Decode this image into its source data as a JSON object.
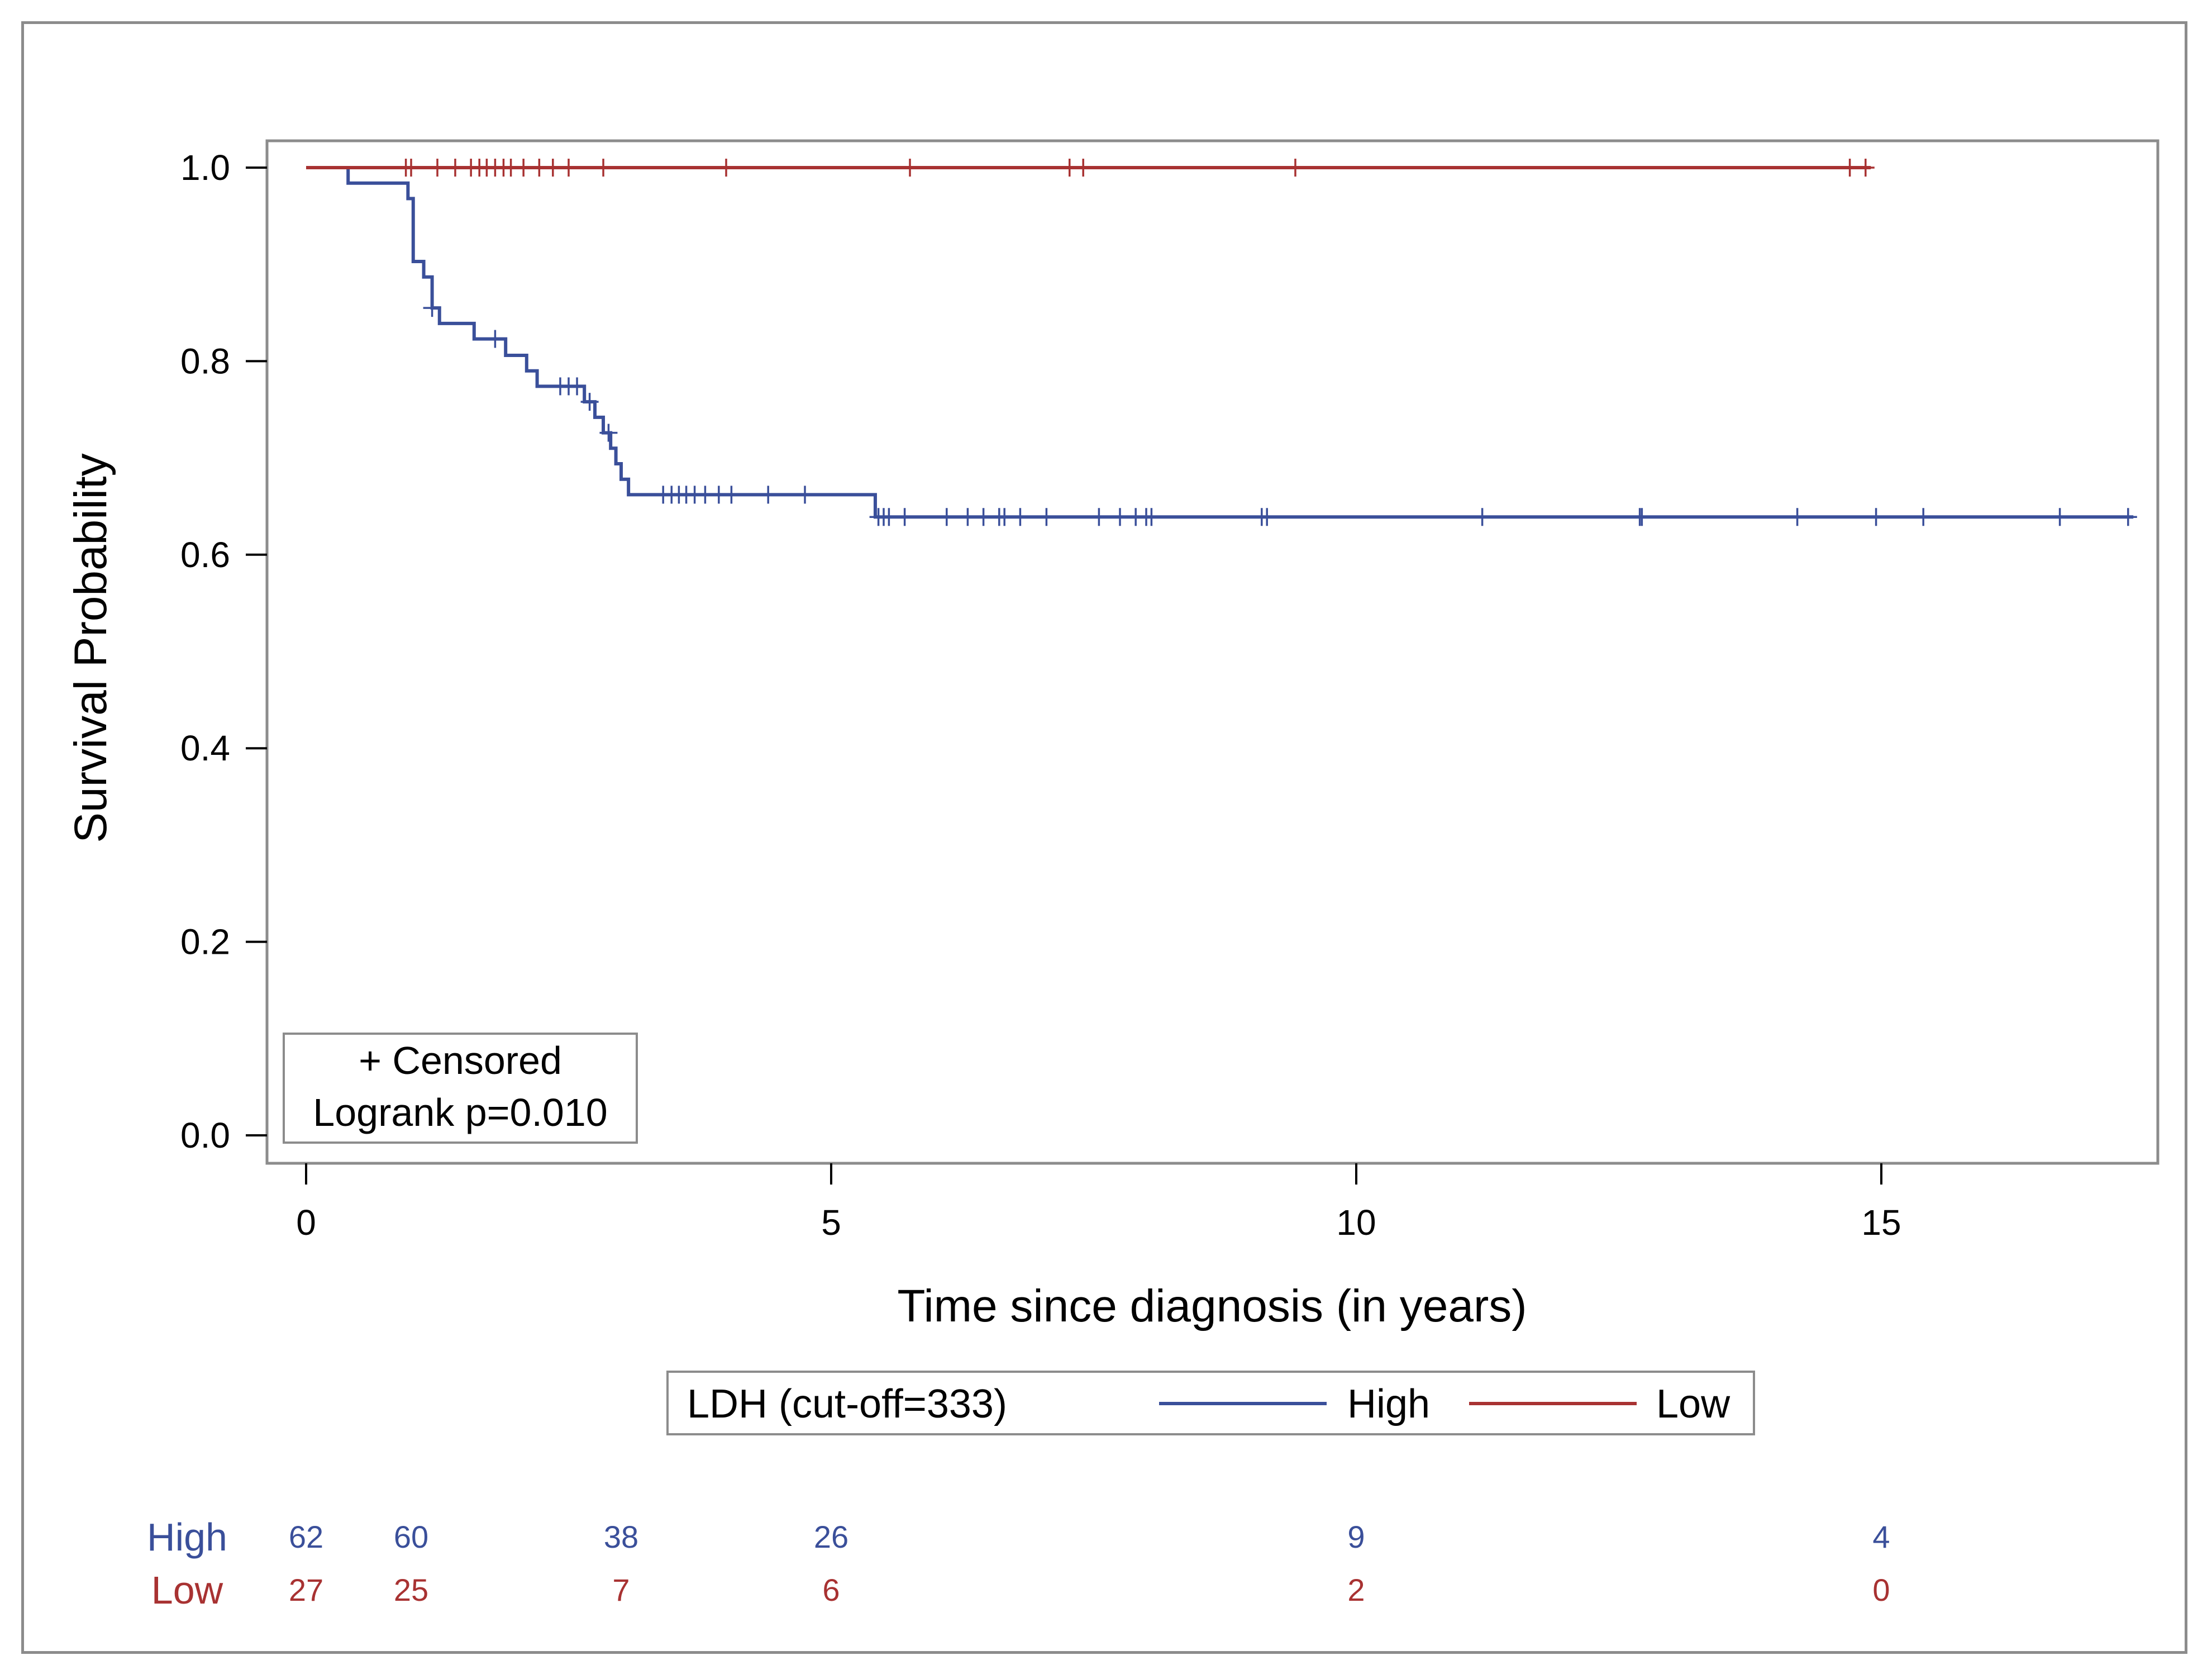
{
  "chart_data": {
    "type": "line",
    "subtype": "kaplan-meier",
    "xlabel": "Time since diagnosis (in years)",
    "ylabel": "Survival Probability",
    "xlim": [
      0,
      17.5
    ],
    "ylim": [
      0,
      1.0
    ],
    "xticks": [
      0,
      5,
      10,
      15
    ],
    "xtick_labels": [
      "0",
      "5",
      "10",
      "15"
    ],
    "yticks": [
      0.0,
      0.2,
      0.4,
      0.6,
      0.8,
      1.0
    ],
    "ytick_labels": [
      "0.0",
      "0.2",
      "0.4",
      "0.6",
      "0.8",
      "1.0"
    ],
    "grid": false,
    "inset": {
      "line1": "+ Censored",
      "line2": "Logrank p=0.010",
      "placement": "bottom-left"
    },
    "legend": {
      "title": "LDH (cut-off=333)",
      "placement": "below-axis",
      "entries": [
        {
          "name": "High",
          "color": "#3a4f9a"
        },
        {
          "name": "Low",
          "color": "#a83232"
        }
      ]
    },
    "series": [
      {
        "name": "High",
        "color": "#3a4f9a",
        "steps": [
          [
            0,
            1.0
          ],
          [
            0.4,
            0.984
          ],
          [
            0.97,
            0.968
          ],
          [
            1.02,
            0.903
          ],
          [
            1.12,
            0.887
          ],
          [
            1.2,
            0.855
          ],
          [
            1.27,
            0.839
          ],
          [
            1.6,
            0.823
          ],
          [
            1.9,
            0.806
          ],
          [
            2.1,
            0.79
          ],
          [
            2.2,
            0.774
          ],
          [
            2.65,
            0.758
          ],
          [
            2.75,
            0.742
          ],
          [
            2.83,
            0.726
          ],
          [
            2.9,
            0.71
          ],
          [
            2.95,
            0.694
          ],
          [
            3.0,
            0.678
          ],
          [
            3.07,
            0.662
          ],
          [
            5.42,
            0.639
          ],
          [
            17.4,
            0.639
          ]
        ],
        "censored": [
          1.2,
          1.8,
          2.42,
          2.5,
          2.58,
          2.7,
          2.88,
          3.4,
          3.48,
          3.55,
          3.62,
          3.7,
          3.8,
          3.93,
          4.05,
          4.4,
          4.75,
          5.45,
          5.5,
          5.55,
          5.7,
          6.1,
          6.3,
          6.45,
          6.6,
          6.65,
          6.8,
          7.05,
          7.55,
          7.75,
          7.9,
          8.0,
          8.05,
          9.1,
          9.15,
          11.2,
          12.7,
          12.72,
          14.2,
          14.95,
          15.4,
          16.7,
          17.35
        ]
      },
      {
        "name": "Low",
        "color": "#a83232",
        "steps": [
          [
            0,
            1.0
          ],
          [
            14.9,
            1.0
          ]
        ],
        "censored": [
          0.95,
          1.0,
          1.25,
          1.42,
          1.57,
          1.65,
          1.72,
          1.8,
          1.88,
          1.95,
          2.07,
          2.22,
          2.35,
          2.5,
          2.83,
          4.0,
          5.75,
          7.27,
          7.4,
          9.42,
          14.7,
          14.85
        ]
      }
    ],
    "at_risk": {
      "times": [
        0,
        1,
        3,
        5,
        10,
        15
      ],
      "groups": [
        {
          "name": "High",
          "color": "#3a4f9a",
          "counts": [
            "62",
            "60",
            "38",
            "26",
            "9",
            "4"
          ]
        },
        {
          "name": "Low",
          "color": "#a83232",
          "counts": [
            "27",
            "25",
            "7",
            "6",
            "2",
            "0"
          ]
        }
      ]
    }
  }
}
